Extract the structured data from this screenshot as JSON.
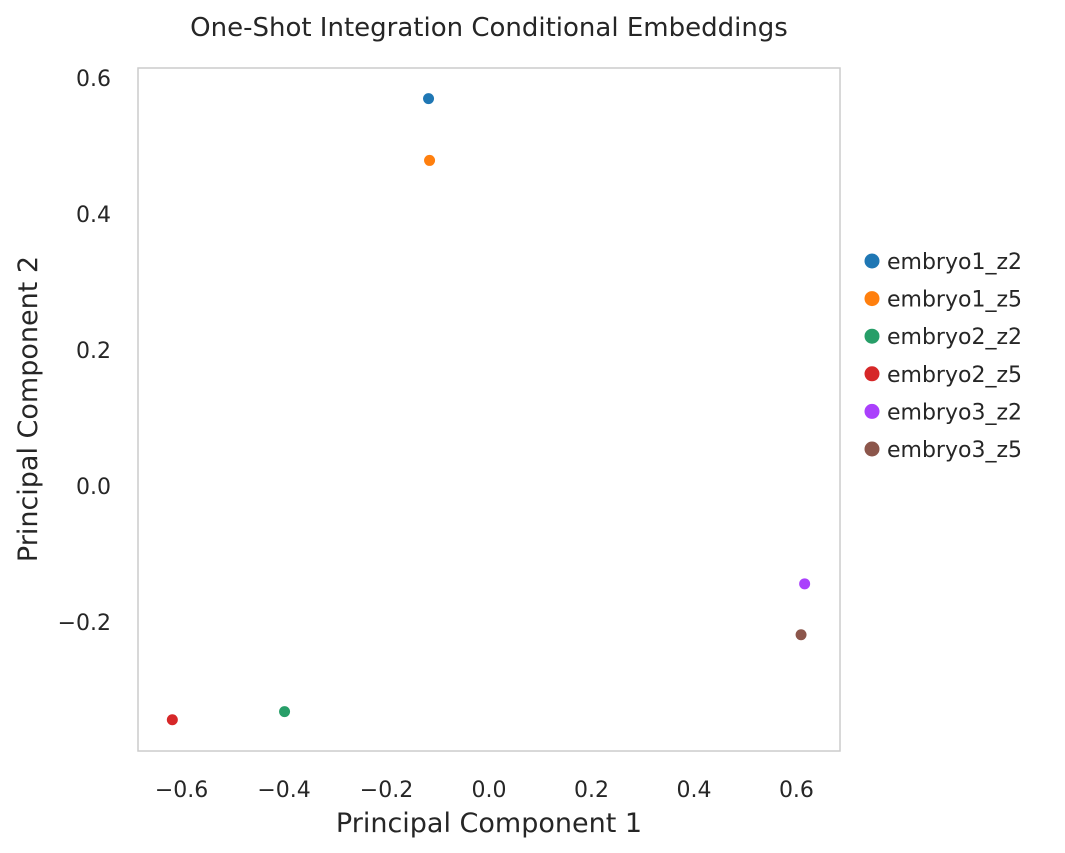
{
  "chart_data": {
    "type": "scatter",
    "title": "One-Shot Integration Conditional Embeddings",
    "xlabel": "Principal Component 1",
    "ylabel": "Principal Component 2",
    "xlim": [
      -0.685,
      0.685
    ],
    "ylim": [
      -0.39,
      0.615
    ],
    "xticks": [
      -0.6,
      -0.4,
      -0.2,
      0.0,
      0.2,
      0.4,
      0.6
    ],
    "xtick_labels": [
      "−0.6",
      "−0.4",
      "−0.2",
      "0.0",
      "0.2",
      "0.4",
      "0.6"
    ],
    "yticks": [
      -0.2,
      0.0,
      0.2,
      0.4,
      0.6
    ],
    "ytick_labels": [
      "−0.2",
      "0.0",
      "0.2",
      "0.4",
      "0.6"
    ],
    "grid": false,
    "legend_position": "right",
    "series": [
      {
        "name": "embryo1_z2",
        "color": "#1f77b4",
        "x": [
          -0.118
        ],
        "y": [
          0.57
        ]
      },
      {
        "name": "embryo1_z5",
        "color": "#ff7f0e",
        "x": [
          -0.116
        ],
        "y": [
          0.479
        ]
      },
      {
        "name": "embryo2_z2",
        "color": "#279e68",
        "x": [
          -0.399
        ],
        "y": [
          -0.332
        ]
      },
      {
        "name": "embryo2_z5",
        "color": "#d62728",
        "x": [
          -0.618
        ],
        "y": [
          -0.344
        ]
      },
      {
        "name": "embryo3_z2",
        "color": "#aa40fc",
        "x": [
          0.616
        ],
        "y": [
          -0.144
        ]
      },
      {
        "name": "embryo3_z5",
        "color": "#8c564b",
        "x": [
          0.609
        ],
        "y": [
          -0.219
        ]
      }
    ]
  }
}
